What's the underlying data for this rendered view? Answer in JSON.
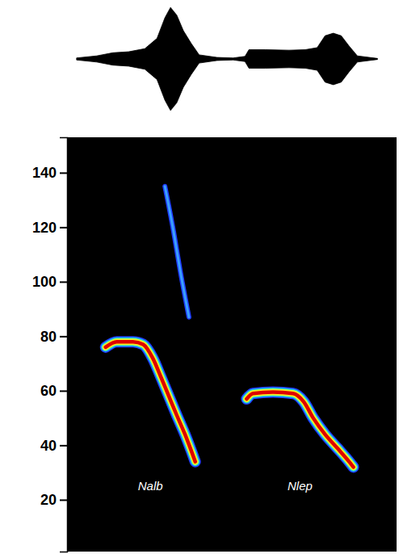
{
  "chart_data": {
    "type": "spectrogram",
    "ylim": [
      1,
      153
    ],
    "yticks": [
      20,
      40,
      60,
      80,
      100,
      120,
      140
    ],
    "xlim": [
      0,
      100
    ],
    "tick_labels": "y",
    "calls": [
      {
        "label": "Nalb",
        "contours": [
          {
            "color": "#e00000",
            "x": [
              11.7,
              15.1,
              20.0,
              23.1,
              26.0,
              28.5,
              30.9,
              33.3,
              35.8,
              37.7,
              38.9
            ],
            "values": [
              76,
              78,
              78,
              77,
              72,
              65,
              58,
              51,
              44,
              38,
              34
            ]
          },
          {
            "color": "#3aa0ff",
            "x": [
              29.7,
              32.1,
              34.5,
              37.0
            ],
            "values": [
              135,
              120,
              103,
              87
            ]
          }
        ]
      },
      {
        "label": "Nlep",
        "contours": [
          {
            "color": "#e00000",
            "x": [
              54.5,
              56.4,
              62.5,
              68.6,
              71.8,
              74.7,
              78.3,
              82.0,
              85.6,
              86.9
            ],
            "values": [
              57,
              59,
              59.5,
              59,
              56,
              50,
              44,
              39,
              34,
              32
            ]
          }
        ]
      }
    ],
    "waveform": {
      "ylim": [
        -1.05,
        1.05
      ],
      "x": [
        2.9,
        9.0,
        13.9,
        18.7,
        23.6,
        27.3,
        29.7,
        31.4,
        33.3,
        35.3,
        37.7,
        40.1,
        45.5,
        50.4,
        54.0,
        55.2,
        60.1,
        67.4,
        72.3,
        75.9,
        78.3,
        80.8,
        83.2,
        85.6,
        88.1,
        94.2
      ],
      "values": [
        0.02,
        0.06,
        0.12,
        0.14,
        0.2,
        0.4,
        0.8,
        1.0,
        0.85,
        0.55,
        0.3,
        0.08,
        0.03,
        0.02,
        0.05,
        0.18,
        0.18,
        0.17,
        0.18,
        0.22,
        0.45,
        0.5,
        0.45,
        0.25,
        0.06,
        0.01
      ]
    }
  }
}
